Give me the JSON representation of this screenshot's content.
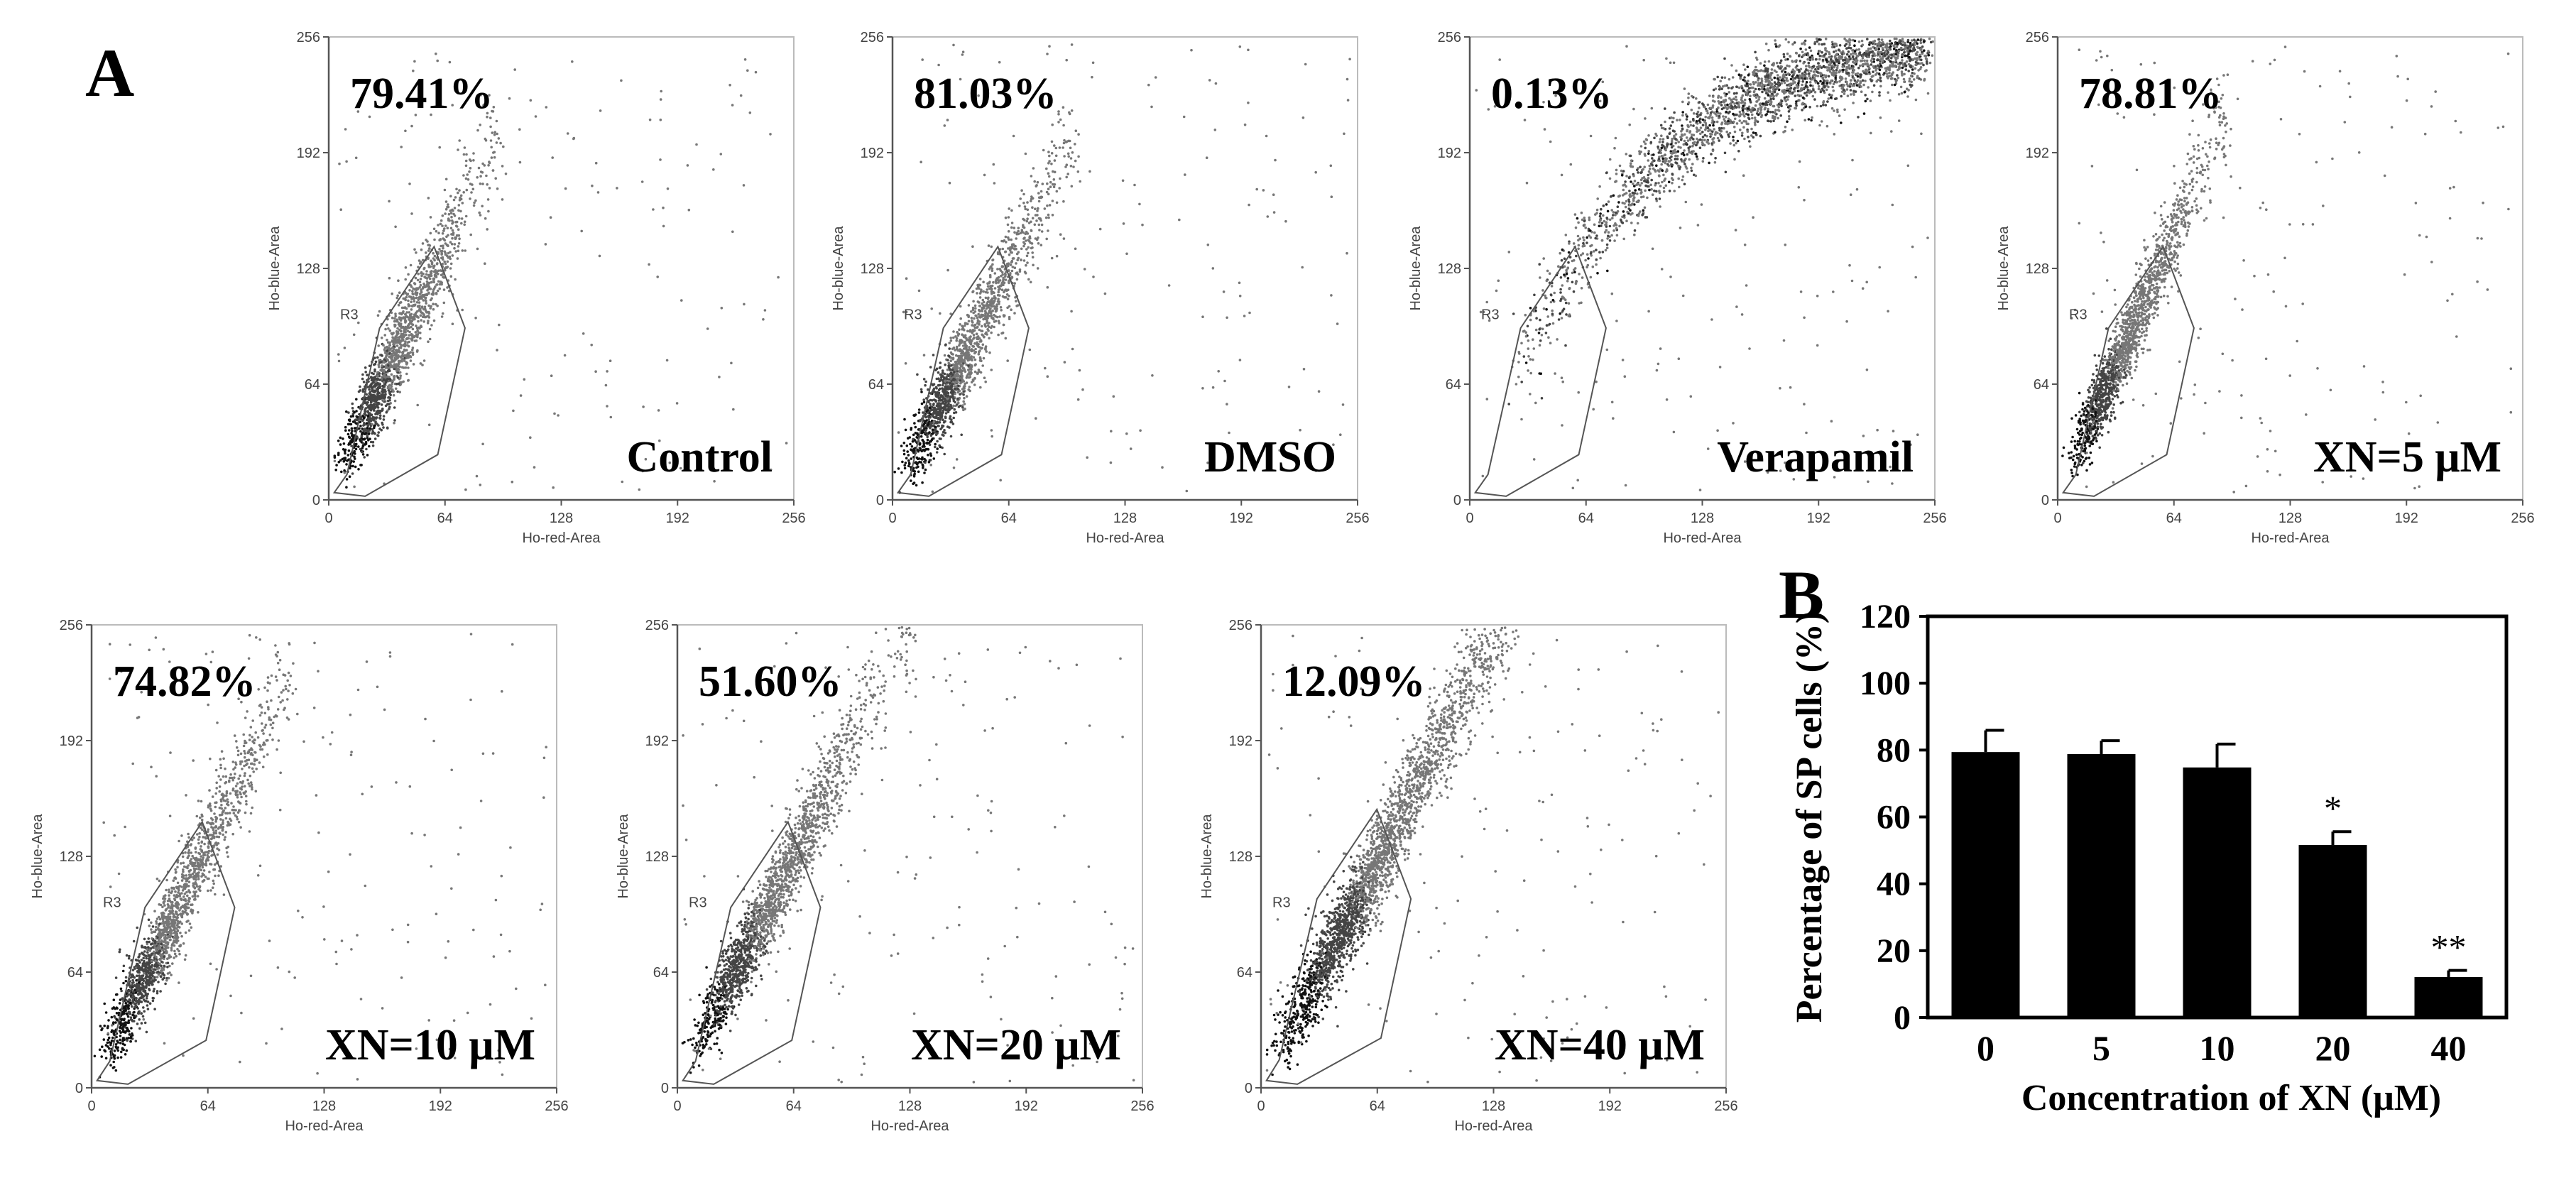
{
  "panel_labels": {
    "A": "A",
    "B": "B"
  },
  "flow_common": {
    "x_axis_label": "Ho-red-Area",
    "y_axis_label": "Ho-blue-Area",
    "ticks": [
      "0",
      "64",
      "128",
      "192",
      "256"
    ],
    "gate_label": "R3"
  },
  "chart_data": [
    {
      "type": "scatter",
      "panel": "A",
      "label": "Control",
      "percent": "79.41%",
      "xlabel": "Ho-red-Area",
      "ylabel": "Ho-blue-Area",
      "xlim": [
        0,
        256
      ],
      "ylim": [
        0,
        256
      ]
    },
    {
      "type": "scatter",
      "panel": "A",
      "label": "DMSO",
      "percent": "81.03%",
      "xlabel": "Ho-red-Area",
      "ylabel": "Ho-blue-Area",
      "xlim": [
        0,
        256
      ],
      "ylim": [
        0,
        256
      ]
    },
    {
      "type": "scatter",
      "panel": "A",
      "label": "Verapamil",
      "percent": "0.13%",
      "xlabel": "Ho-red-Area",
      "ylabel": "Ho-blue-Area",
      "xlim": [
        0,
        256
      ],
      "ylim": [
        0,
        256
      ]
    },
    {
      "type": "scatter",
      "panel": "A",
      "label": "XN=5 μM",
      "percent": "78.81%",
      "xlabel": "Ho-red-Area",
      "ylabel": "Ho-blue-Area",
      "xlim": [
        0,
        256
      ],
      "ylim": [
        0,
        256
      ]
    },
    {
      "type": "scatter",
      "panel": "A",
      "label": "XN=10 μM",
      "percent": "74.82%",
      "xlabel": "Ho-red-Area",
      "ylabel": "Ho-blue-Area",
      "xlim": [
        0,
        256
      ],
      "ylim": [
        0,
        256
      ]
    },
    {
      "type": "scatter",
      "panel": "A",
      "label": "XN=20 μM",
      "percent": "51.60%",
      "xlabel": "Ho-red-Area",
      "ylabel": "Ho-blue-Area",
      "xlim": [
        0,
        256
      ],
      "ylim": [
        0,
        256
      ]
    },
    {
      "type": "scatter",
      "panel": "A",
      "label": "XN=40 μM",
      "percent": "12.09%",
      "xlabel": "Ho-red-Area",
      "ylabel": "Ho-blue-Area",
      "xlim": [
        0,
        256
      ],
      "ylim": [
        0,
        256
      ]
    },
    {
      "type": "bar",
      "panel": "B",
      "categories": [
        "0",
        "5",
        "10",
        "20",
        "40"
      ],
      "values": [
        79.4,
        78.8,
        74.8,
        51.6,
        12.1
      ],
      "errors": [
        6.5,
        4.0,
        7.0,
        4.0,
        2.0
      ],
      "significance": [
        "",
        "",
        "",
        "*",
        "**"
      ],
      "xlabel": "Concentration of XN (μM)",
      "ylabel": "Percentage of SP cells (%)",
      "ylim": [
        0,
        120
      ],
      "yticks": [
        0,
        20,
        40,
        60,
        80,
        100,
        120
      ],
      "bar_color": "#000000"
    }
  ]
}
